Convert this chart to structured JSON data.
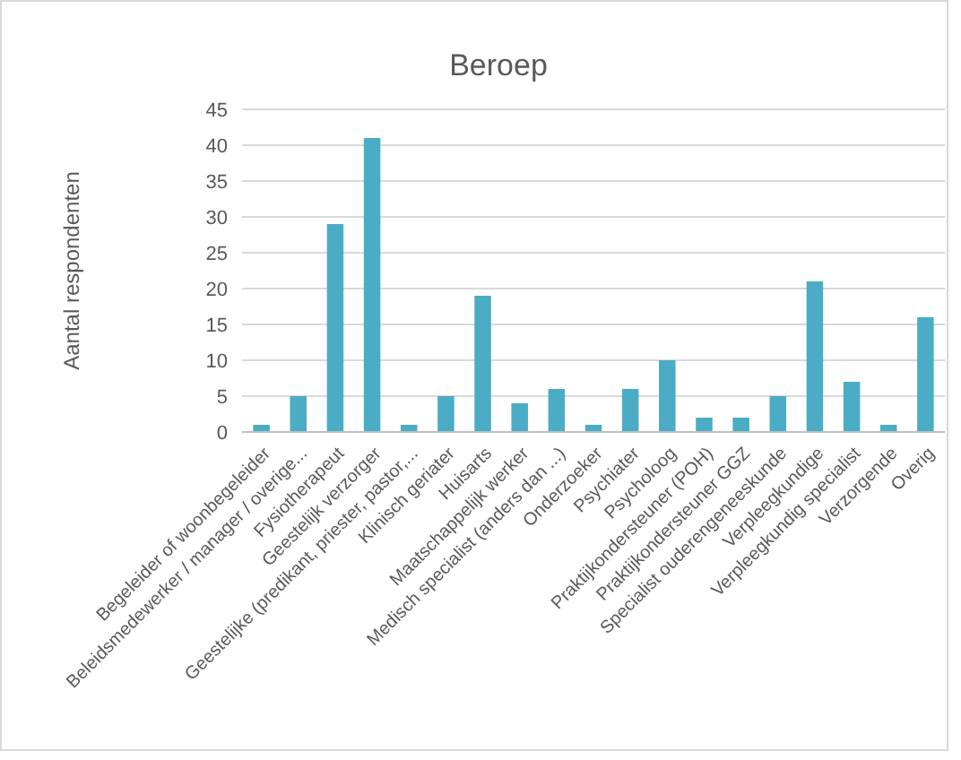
{
  "chart_data": {
    "type": "bar",
    "title": "Beroep",
    "ylabel": "Aantal respondenten",
    "categories": [
      "Begeleider of woonbegeleider",
      "Beleidsmedewerker / manager / overige...",
      "Fysiotherapeut",
      "Geestelijk verzorger",
      "Geestelijke (predikant, priester, pastor,...",
      "Klinisch geriater",
      "Huisarts",
      "Maatschappelijk werker",
      "Medisch specialist (anders dan ...)",
      "Onderzoeker",
      "Psychiater",
      "Psycholoog",
      "Praktijkondersteuner (POH)",
      "Praktijkondersteuner GGZ",
      "Specialist ouderengeneeskunde",
      "Verpleegkundige",
      "Verpleegkundig specialist",
      "Verzorgende",
      "Overig"
    ],
    "values": [
      1,
      5,
      29,
      41,
      1,
      5,
      19,
      4,
      6,
      1,
      6,
      10,
      2,
      2,
      5,
      21,
      7,
      1,
      16
    ],
    "color": "#4bacc6",
    "ylim": [
      0,
      45
    ],
    "yticks": [
      0,
      5,
      10,
      15,
      20,
      25,
      30,
      35,
      40,
      45
    ],
    "grid": "y"
  }
}
